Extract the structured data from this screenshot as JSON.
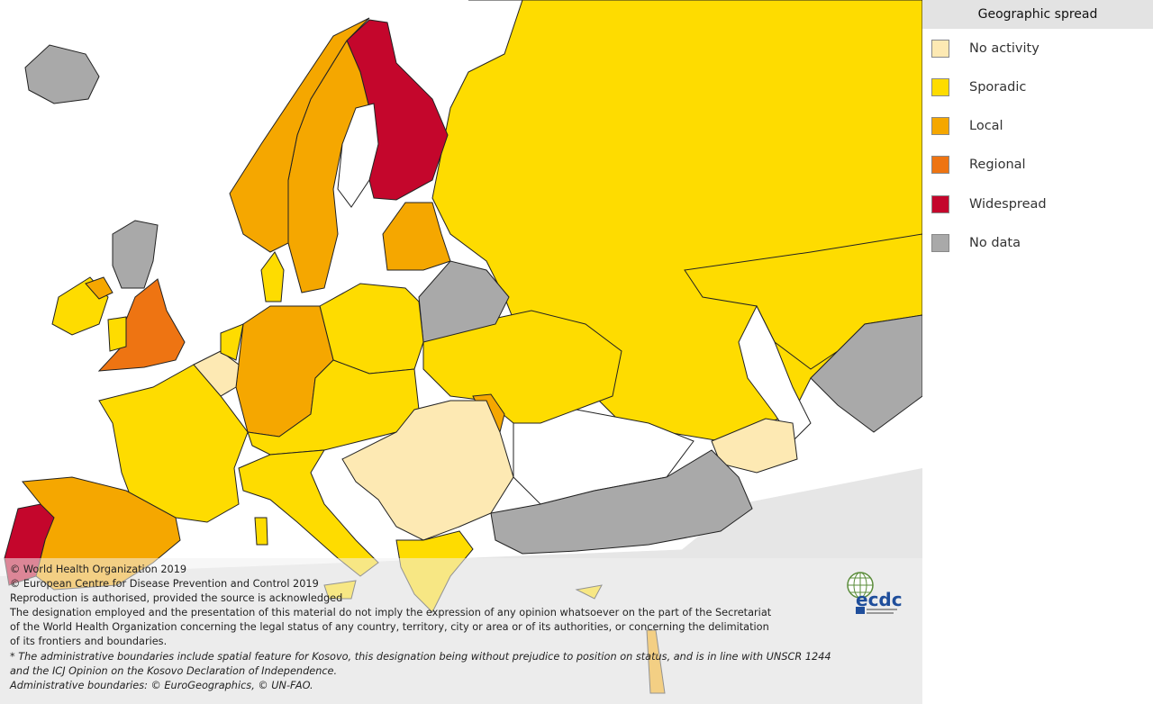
{
  "legend": {
    "title": "Geographic spread",
    "items": [
      {
        "label": "No activity",
        "color": "#fde9b3"
      },
      {
        "label": "Sporadic",
        "color": "#fedc00"
      },
      {
        "label": "Local",
        "color": "#f5a700"
      },
      {
        "label": "Regional",
        "color": "#ee7412"
      },
      {
        "label": "Widespread",
        "color": "#c4062c"
      },
      {
        "label": "No data",
        "color": "#a9a9a9"
      }
    ]
  },
  "credits": {
    "lines": [
      "© World Health Organization 2019",
      "© European Centre for Disease Prevention and Control 2019",
      "Reproduction is authorised, provided the source is acknowledged",
      "The designation employed and the presentation of this material do not imply the expression of any opinion whatsoever on the part of the Secretariat",
      "of the World Health Organization concerning the legal status of any country, territory, city or area or of its authorities, or concerning the delimitation",
      "of its frontiers and boundaries."
    ],
    "note_lines": [
      "* The administrative boundaries include spatial feature for Kosovo, this designation being without prejudice to position on status, and is in line with UNSCR 1244",
      "and the ICJ Opinion on the Kosovo Declaration of Independence.",
      "Administrative boundaries: © EuroGeographics, © UN-FAO."
    ]
  },
  "logo": {
    "text": "ecdc"
  },
  "regions": [
    {
      "name": "russia",
      "level": "Sporadic"
    },
    {
      "name": "kazakhstan",
      "level": "Sporadic"
    },
    {
      "name": "finland",
      "level": "Widespread"
    },
    {
      "name": "sweden",
      "level": "Local"
    },
    {
      "name": "norway",
      "level": "Local"
    },
    {
      "name": "england",
      "level": "Regional"
    },
    {
      "name": "portugal",
      "level": "Widespread"
    },
    {
      "name": "spain",
      "level": "Local"
    },
    {
      "name": "germany",
      "level": "Local"
    },
    {
      "name": "france",
      "level": "Sporadic"
    },
    {
      "name": "balkans",
      "level": "No activity"
    },
    {
      "name": "belarus",
      "level": "No data"
    },
    {
      "name": "turkey",
      "level": "No data"
    },
    {
      "name": "iceland",
      "level": "No data"
    }
  ]
}
